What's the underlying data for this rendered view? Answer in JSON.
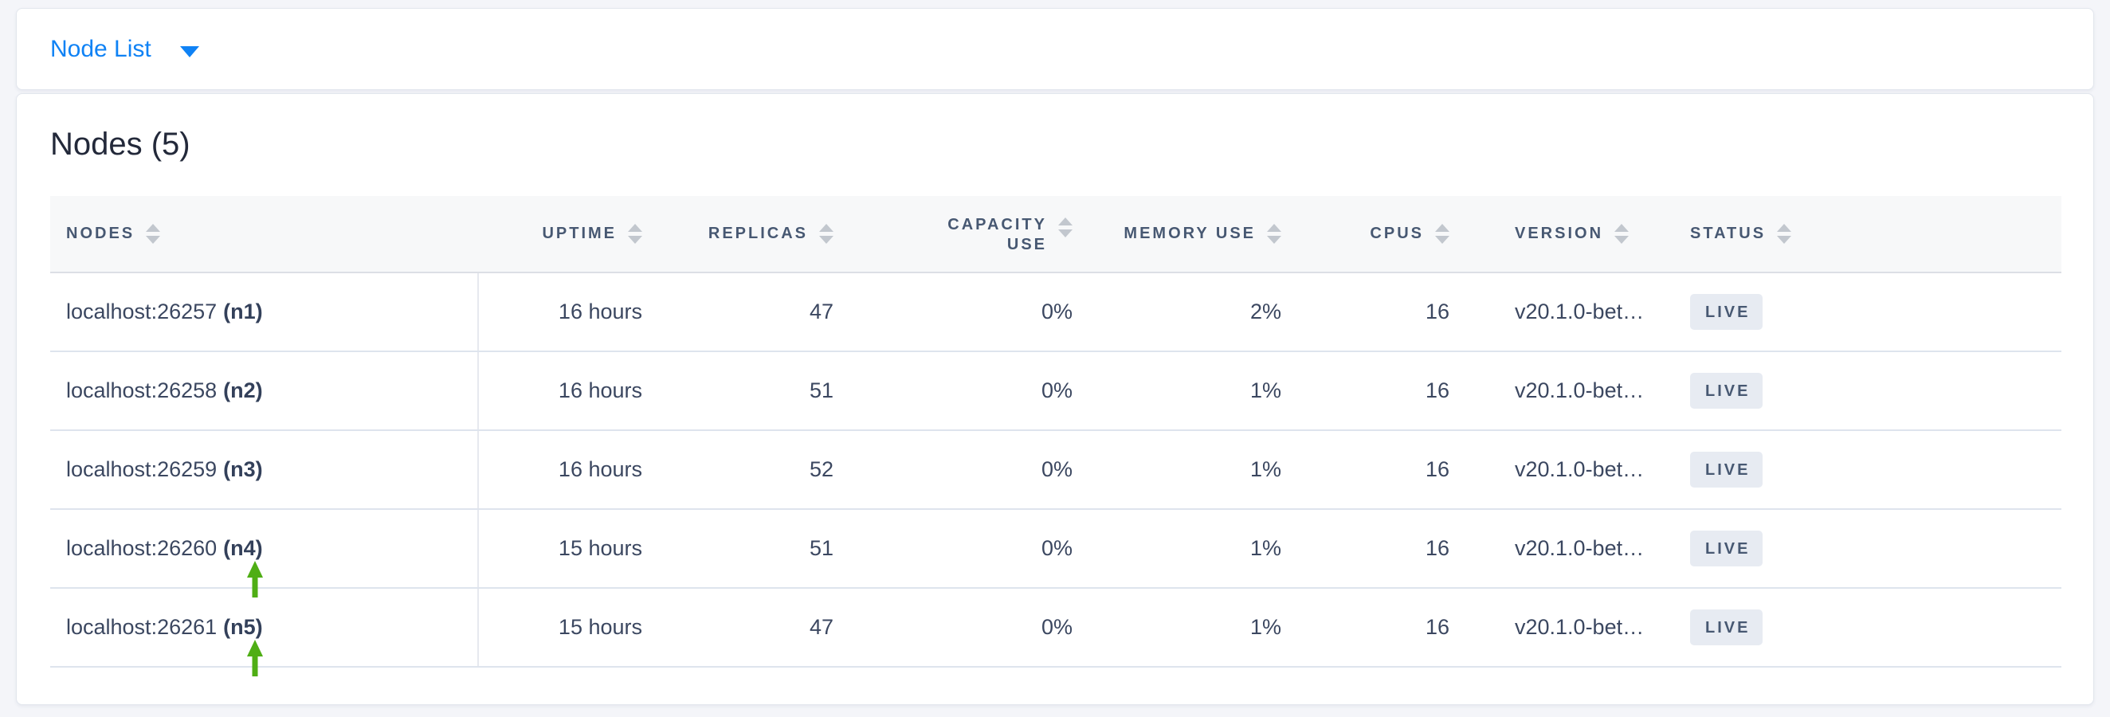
{
  "toolbar": {
    "dropdown_label": "Node List"
  },
  "main": {
    "title": "Nodes (5)",
    "table": {
      "columns": [
        {
          "key": "nodes",
          "label": "NODES",
          "align": "left",
          "wrap": false
        },
        {
          "key": "uptime",
          "label": "UPTIME",
          "align": "right",
          "wrap": false
        },
        {
          "key": "replicas",
          "label": "REPLICAS",
          "align": "right",
          "wrap": false
        },
        {
          "key": "capacity_use",
          "label": "CAPACITY USE",
          "align": "right",
          "wrap": true
        },
        {
          "key": "memory_use",
          "label": "MEMORY USE",
          "align": "right",
          "wrap": false
        },
        {
          "key": "cpus",
          "label": "CPUS",
          "align": "right",
          "wrap": false
        },
        {
          "key": "version",
          "label": "VERSION",
          "align": "left",
          "wrap": false
        },
        {
          "key": "status",
          "label": "STATUS",
          "align": "left",
          "wrap": false
        }
      ],
      "rows": [
        {
          "address": "localhost:26257",
          "node_id": "(n1)",
          "uptime": "16 hours",
          "replicas": "47",
          "capacity_use": "0%",
          "memory_use": "2%",
          "cpus": "16",
          "version": "v20.1.0-bet…",
          "status": "LIVE",
          "highlight_arrow": false
        },
        {
          "address": "localhost:26258",
          "node_id": "(n2)",
          "uptime": "16 hours",
          "replicas": "51",
          "capacity_use": "0%",
          "memory_use": "1%",
          "cpus": "16",
          "version": "v20.1.0-bet…",
          "status": "LIVE",
          "highlight_arrow": false
        },
        {
          "address": "localhost:26259",
          "node_id": "(n3)",
          "uptime": "16 hours",
          "replicas": "52",
          "capacity_use": "0%",
          "memory_use": "1%",
          "cpus": "16",
          "version": "v20.1.0-bet…",
          "status": "LIVE",
          "highlight_arrow": false
        },
        {
          "address": "localhost:26260",
          "node_id": "(n4)",
          "uptime": "15 hours",
          "replicas": "51",
          "capacity_use": "0%",
          "memory_use": "1%",
          "cpus": "16",
          "version": "v20.1.0-bet…",
          "status": "LIVE",
          "highlight_arrow": true
        },
        {
          "address": "localhost:26261",
          "node_id": "(n5)",
          "uptime": "15 hours",
          "replicas": "47",
          "capacity_use": "0%",
          "memory_use": "1%",
          "cpus": "16",
          "version": "v20.1.0-bet…",
          "status": "LIVE",
          "highlight_arrow": true
        }
      ]
    }
  },
  "icons": {
    "dropdown_caret": "chevron-down-icon",
    "sort": "sort-arrows-icon",
    "row_highlight": "green-up-arrow-icon"
  },
  "colors": {
    "accent_blue": "#0f82f5",
    "arrow_green": "#4fae15",
    "badge_bg": "#e7ebf2",
    "badge_text": "#475872",
    "header_text": "#475872",
    "cell_text": "#3b4760",
    "page_bg": "#f4f5f9",
    "card_border": "#e2e6ed",
    "header_bg": "#f7f8f9",
    "row_border": "#dee4ed"
  }
}
